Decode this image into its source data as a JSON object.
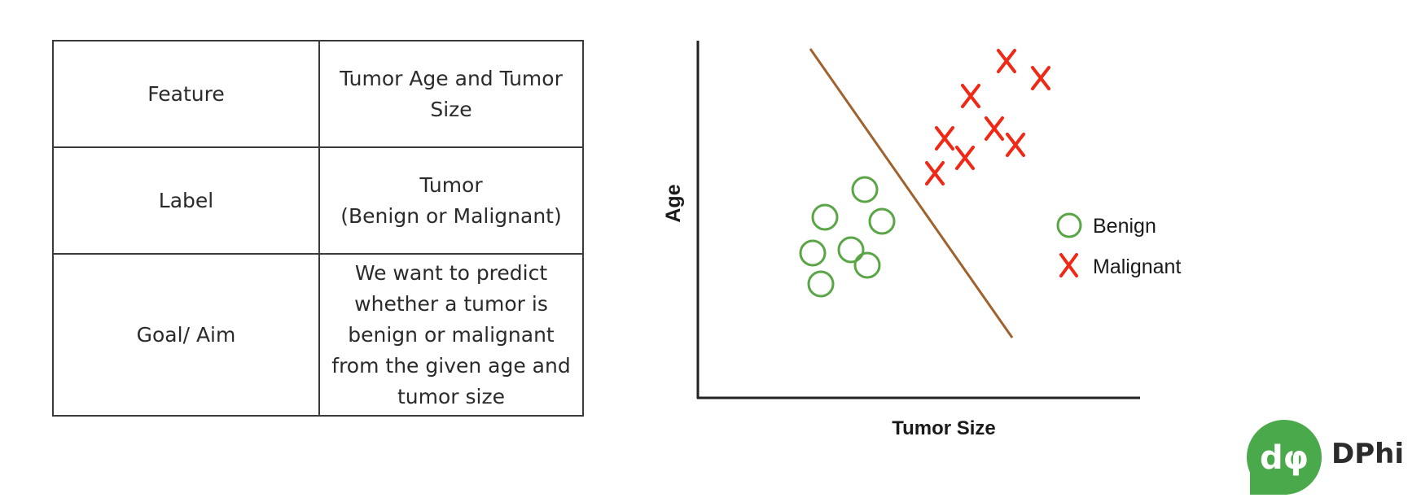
{
  "table": {
    "rows": [
      {
        "key": "Feature",
        "value": [
          "Tumor Age and Tumor",
          "Size"
        ]
      },
      {
        "key": "Label",
        "value": [
          "Tumor",
          "(Benign or Malignant)"
        ]
      },
      {
        "key": "Goal/ Aim",
        "value": [
          "We want to predict",
          "whether a tumor is",
          "benign or malignant",
          "from the given age and",
          "tumor size"
        ]
      }
    ]
  },
  "plot": {
    "xlabel": "Tumor Size",
    "ylabel": "Age",
    "legend": {
      "placement": "right",
      "items": [
        {
          "label": "Benign",
          "marker": "circle",
          "color": "#5aa545"
        },
        {
          "label": "Malignant",
          "marker": "x",
          "color": "#f02815"
        }
      ]
    },
    "boundary_color": "#a0622d"
  },
  "logo": {
    "symbol": "dφ",
    "text": "DPhi",
    "color": "#4aa94a"
  }
}
